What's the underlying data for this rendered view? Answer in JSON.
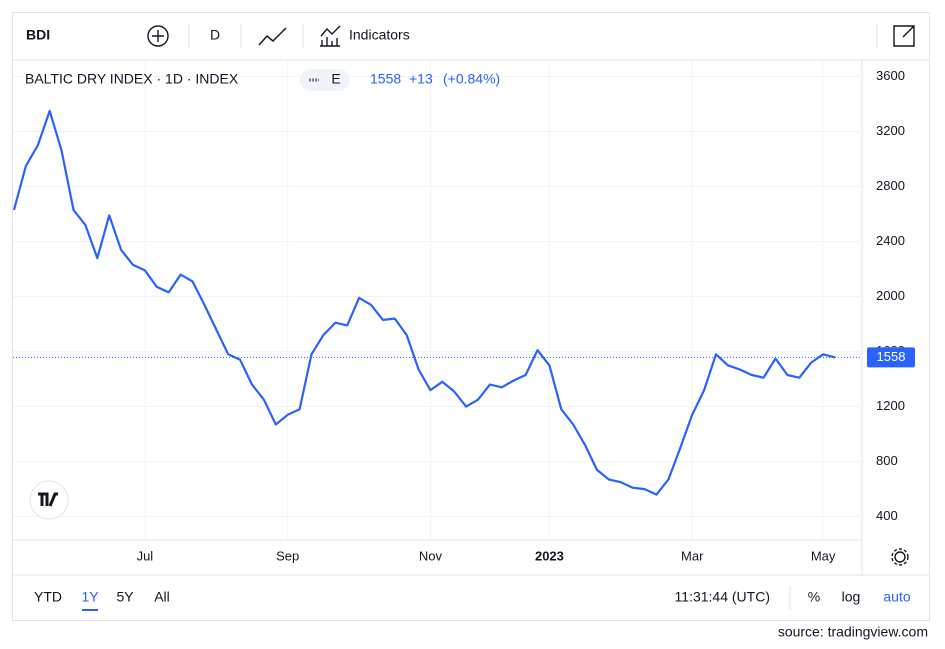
{
  "chart_data": {
    "type": "line",
    "toolbar": {
      "symbol": "BDI",
      "interval": "D",
      "indicators": "Indicators"
    },
    "title": "BALTIC DRY INDEX · 1D · INDEX",
    "badge": "E",
    "change": "+13",
    "change_pct": "(+0.84%)",
    "categories": [
      null,
      null,
      null,
      null,
      null,
      null,
      null,
      null,
      null,
      null,
      null,
      "Jul",
      null,
      null,
      null,
      null,
      null,
      null,
      null,
      null,
      null,
      null,
      null,
      "Sep",
      null,
      null,
      null,
      null,
      null,
      null,
      null,
      null,
      null,
      null,
      null,
      "Nov",
      null,
      null,
      null,
      null,
      null,
      null,
      null,
      null,
      null,
      "2023",
      null,
      null,
      null,
      null,
      null,
      null,
      null,
      null,
      null,
      null,
      null,
      "Mar",
      null,
      null,
      null,
      null,
      null,
      null,
      null,
      null,
      null,
      null,
      "May",
      null
    ],
    "values": [
      2630,
      2950,
      3100,
      3350,
      3060,
      2630,
      2520,
      2280,
      2590,
      2340,
      2230,
      2190,
      2070,
      2030,
      2160,
      2110,
      1940,
      1760,
      1580,
      1540,
      1360,
      1250,
      1070,
      1140,
      1180,
      1580,
      1720,
      1810,
      1790,
      1990,
      1940,
      1830,
      1840,
      1720,
      1470,
      1320,
      1380,
      1310,
      1200,
      1250,
      1360,
      1340,
      1390,
      1430,
      1610,
      1500,
      1180,
      1070,
      920,
      740,
      670,
      650,
      610,
      600,
      560,
      670,
      900,
      1140,
      1320,
      1580,
      1500,
      1470,
      1430,
      1410,
      1550,
      1430,
      1410,
      1520,
      1580,
      1558
    ],
    "color": "#2962ff",
    "ylim": [
      230,
      3720
    ],
    "yticks": [
      400,
      800,
      1200,
      1600,
      2000,
      2400,
      2800,
      3200,
      3600
    ],
    "grid": true,
    "ranges": [
      "YTD",
      "1Y",
      "5Y",
      "All"
    ],
    "time": "11:31:44 (UTC)",
    "scale_options": [
      "%",
      "log",
      "auto"
    ],
    "source": "source: tradingview.com"
  }
}
